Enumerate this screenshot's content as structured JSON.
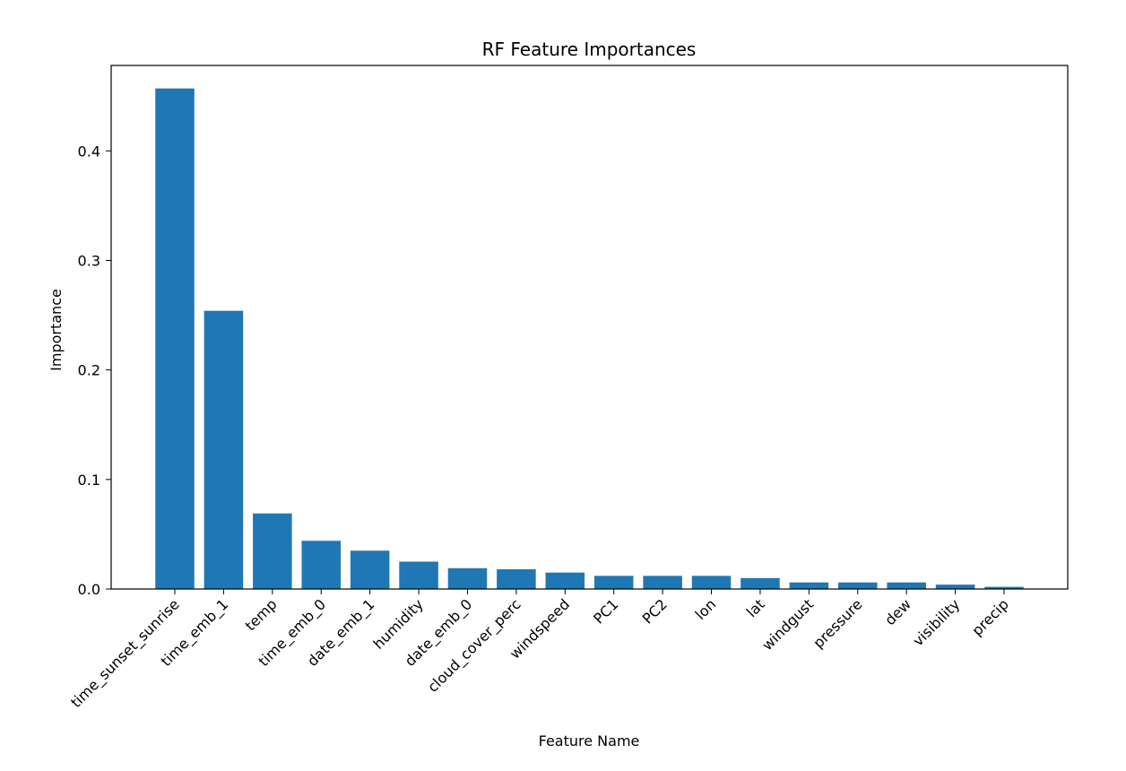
{
  "chart_data": {
    "type": "bar",
    "title": "RF Feature Importances",
    "xlabel": "Feature Name",
    "ylabel": "Importance",
    "categories": [
      "time_sunset_sunrise",
      "time_emb_1",
      "temp",
      "time_emb_0",
      "date_emb_1",
      "humidity",
      "date_emb_0",
      "cloud_cover_perc",
      "windspeed",
      "PC1",
      "PC2",
      "lon",
      "lat",
      "windgust",
      "pressure",
      "dew",
      "visibility",
      "precip"
    ],
    "values": [
      0.457,
      0.254,
      0.069,
      0.044,
      0.035,
      0.025,
      0.019,
      0.018,
      0.015,
      0.012,
      0.012,
      0.012,
      0.01,
      0.006,
      0.006,
      0.006,
      0.004,
      0.002
    ],
    "ylim": [
      0,
      0.478
    ],
    "yticks": [
      0.0,
      0.1,
      0.2,
      0.3,
      0.4
    ],
    "ytick_labels": [
      "0.0",
      "0.1",
      "0.2",
      "0.3",
      "0.4"
    ],
    "grid": false,
    "bar_color": "#1f77b4"
  }
}
